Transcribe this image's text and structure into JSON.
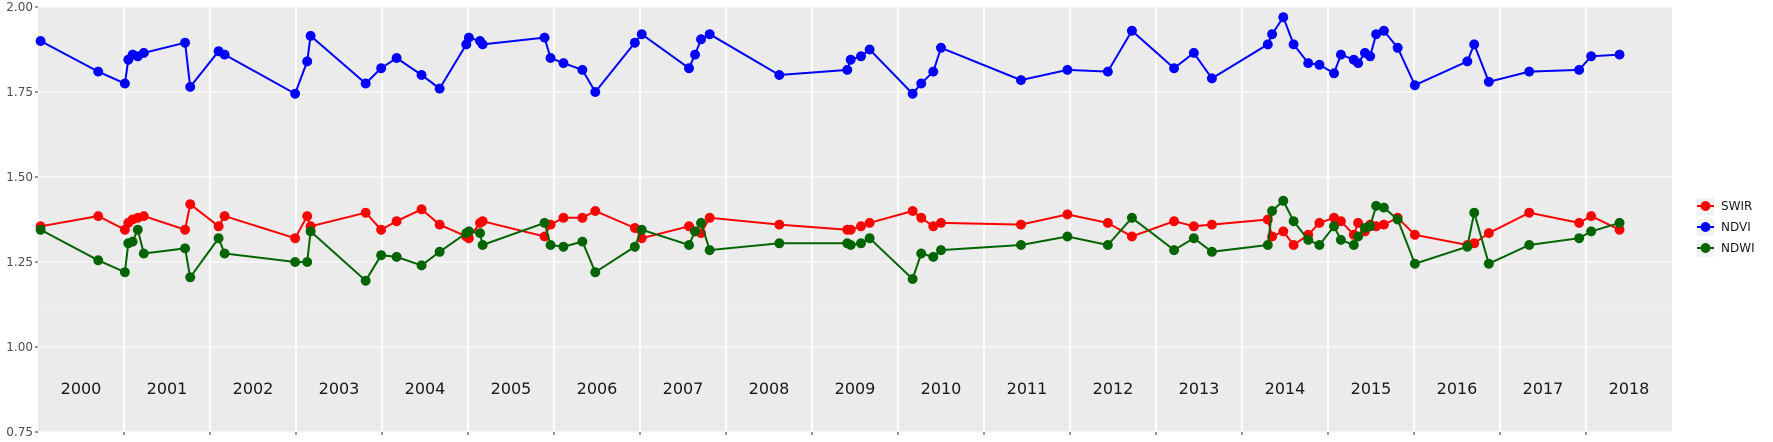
{
  "chart_data": {
    "type": "line",
    "x_range": [
      2000,
      2019
    ],
    "ylim": [
      0.75,
      2.0
    ],
    "y_ticks": [
      "0.75",
      "1.00",
      "1.25",
      "1.50",
      "1.75",
      "2.00"
    ],
    "year_labels": [
      "2000",
      "2001",
      "2002",
      "2003",
      "2004",
      "2005",
      "2006",
      "2007",
      "2008",
      "2009",
      "2010",
      "2011",
      "2012",
      "2013",
      "2014",
      "2015",
      "2016",
      "2017",
      "2018"
    ],
    "grid": true,
    "legend_position": "right",
    "series": [
      {
        "name": "SWIR",
        "color": "#ff0000",
        "x": [
          2000.03,
          2000.7,
          2001.01,
          2001.05,
          2001.1,
          2001.16,
          2001.23,
          2001.71,
          2001.77,
          2002.1,
          2002.17,
          2002.99,
          2003.13,
          2003.17,
          2003.81,
          2003.99,
          2004.17,
          2004.46,
          2004.67,
          2004.98,
          2005.01,
          2005.14,
          2005.17,
          2005.89,
          2005.96,
          2006.11,
          2006.33,
          2006.48,
          2006.94,
          2007.02,
          2007.57,
          2007.64,
          2007.71,
          2007.81,
          2008.62,
          2009.41,
          2009.45,
          2009.57,
          2009.67,
          2010.17,
          2010.27,
          2010.41,
          2010.5,
          2011.43,
          2011.97,
          2012.44,
          2012.72,
          2013.21,
          2013.44,
          2013.65,
          2014.3,
          2014.35,
          2014.48,
          2014.6,
          2014.77,
          2014.9,
          2015.07,
          2015.15,
          2015.3,
          2015.35,
          2015.43,
          2015.49,
          2015.56,
          2015.65,
          2015.81,
          2016.01,
          2016.62,
          2016.7,
          2016.87,
          2017.34,
          2017.92,
          2018.06,
          2018.39
        ],
        "values": [
          1.355,
          1.385,
          1.345,
          1.365,
          1.375,
          1.38,
          1.385,
          1.345,
          1.42,
          1.355,
          1.385,
          1.32,
          1.385,
          1.355,
          1.395,
          1.345,
          1.37,
          1.405,
          1.36,
          1.325,
          1.32,
          1.365,
          1.37,
          1.325,
          1.36,
          1.38,
          1.38,
          1.4,
          1.35,
          1.32,
          1.355,
          1.34,
          1.335,
          1.38,
          1.36,
          1.345,
          1.345,
          1.355,
          1.365,
          1.4,
          1.38,
          1.355,
          1.365,
          1.36,
          1.39,
          1.365,
          1.325,
          1.37,
          1.355,
          1.36,
          1.375,
          1.325,
          1.34,
          1.3,
          1.33,
          1.365,
          1.38,
          1.37,
          1.33,
          1.365,
          1.34,
          1.36,
          1.355,
          1.36,
          1.38,
          1.33,
          1.3,
          1.305,
          1.335,
          1.395,
          1.365,
          1.385,
          1.345
        ]
      },
      {
        "name": "NDVI",
        "color": "#0000ff",
        "x": [
          2000.03,
          2000.7,
          2001.01,
          2001.05,
          2001.1,
          2001.16,
          2001.23,
          2001.71,
          2001.77,
          2002.1,
          2002.17,
          2002.99,
          2003.13,
          2003.17,
          2003.81,
          2003.99,
          2004.17,
          2004.46,
          2004.67,
          2004.98,
          2005.01,
          2005.14,
          2005.17,
          2005.89,
          2005.96,
          2006.11,
          2006.33,
          2006.48,
          2006.94,
          2007.02,
          2007.57,
          2007.64,
          2007.71,
          2007.81,
          2008.62,
          2009.41,
          2009.45,
          2009.57,
          2009.67,
          2010.17,
          2010.27,
          2010.41,
          2010.5,
          2011.43,
          2011.97,
          2012.44,
          2012.72,
          2013.21,
          2013.44,
          2013.65,
          2014.3,
          2014.35,
          2014.48,
          2014.6,
          2014.77,
          2014.9,
          2015.07,
          2015.15,
          2015.3,
          2015.35,
          2015.43,
          2015.49,
          2015.56,
          2015.65,
          2015.81,
          2016.01,
          2016.62,
          2016.7,
          2016.87,
          2017.34,
          2017.92,
          2018.06,
          2018.39
        ],
        "values": [
          1.9,
          1.81,
          1.775,
          1.845,
          1.86,
          1.855,
          1.865,
          1.895,
          1.765,
          1.87,
          1.86,
          1.745,
          1.84,
          1.915,
          1.775,
          1.82,
          1.85,
          1.8,
          1.76,
          1.89,
          1.91,
          1.9,
          1.89,
          1.91,
          1.85,
          1.835,
          1.815,
          1.75,
          1.895,
          1.92,
          1.82,
          1.86,
          1.905,
          1.92,
          1.8,
          1.815,
          1.845,
          1.855,
          1.875,
          1.745,
          1.775,
          1.81,
          1.88,
          1.785,
          1.815,
          1.81,
          1.93,
          1.82,
          1.865,
          1.79,
          1.89,
          1.92,
          1.97,
          1.89,
          1.835,
          1.83,
          1.805,
          1.86,
          1.845,
          1.835,
          1.865,
          1.855,
          1.92,
          1.93,
          1.88,
          1.77,
          1.84,
          1.89,
          1.78,
          1.81,
          1.815,
          1.855,
          1.86
        ]
      },
      {
        "name": "NDWI",
        "color": "#006400",
        "x": [
          2000.03,
          2000.7,
          2001.01,
          2001.05,
          2001.1,
          2001.16,
          2001.23,
          2001.71,
          2001.77,
          2002.1,
          2002.17,
          2002.99,
          2003.13,
          2003.17,
          2003.81,
          2003.99,
          2004.17,
          2004.46,
          2004.67,
          2004.98,
          2005.01,
          2005.14,
          2005.17,
          2005.89,
          2005.96,
          2006.11,
          2006.33,
          2006.48,
          2006.94,
          2007.02,
          2007.57,
          2007.64,
          2007.71,
          2007.81,
          2008.62,
          2009.41,
          2009.45,
          2009.57,
          2009.67,
          2010.17,
          2010.27,
          2010.41,
          2010.5,
          2011.43,
          2011.97,
          2012.44,
          2012.72,
          2013.21,
          2013.44,
          2013.65,
          2014.3,
          2014.35,
          2014.48,
          2014.6,
          2014.77,
          2014.9,
          2015.07,
          2015.15,
          2015.3,
          2015.35,
          2015.43,
          2015.49,
          2015.56,
          2015.65,
          2015.81,
          2016.01,
          2016.62,
          2016.7,
          2016.87,
          2017.34,
          2017.92,
          2018.06,
          2018.39
        ],
        "values": [
          1.345,
          1.255,
          1.22,
          1.305,
          1.31,
          1.345,
          1.275,
          1.29,
          1.205,
          1.32,
          1.275,
          1.25,
          1.25,
          1.34,
          1.195,
          1.27,
          1.265,
          1.24,
          1.28,
          1.335,
          1.34,
          1.335,
          1.3,
          1.365,
          1.3,
          1.295,
          1.31,
          1.22,
          1.295,
          1.345,
          1.3,
          1.34,
          1.365,
          1.285,
          1.305,
          1.305,
          1.3,
          1.305,
          1.32,
          1.2,
          1.275,
          1.265,
          1.285,
          1.3,
          1.325,
          1.3,
          1.38,
          1.285,
          1.32,
          1.28,
          1.3,
          1.4,
          1.43,
          1.37,
          1.315,
          1.3,
          1.355,
          1.315,
          1.3,
          1.325,
          1.35,
          1.355,
          1.415,
          1.41,
          1.375,
          1.245,
          1.295,
          1.395,
          1.245,
          1.3,
          1.32,
          1.34,
          1.365
        ]
      }
    ]
  }
}
